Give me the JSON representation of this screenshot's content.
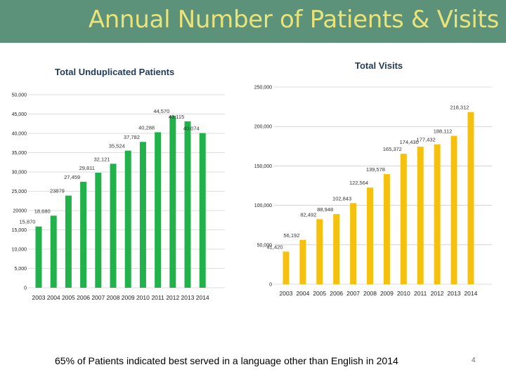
{
  "title": "Annual Number of Patients & Visits",
  "footnote": "65% of Patients indicated best served in a language other than English in 2014",
  "page_number": "4",
  "colors": {
    "header": "#5b9279",
    "title": "#e9e37c",
    "patients_bar": "#21b24b",
    "visits_bar": "#f5c10e"
  },
  "chart_data": [
    {
      "type": "bar",
      "title": "Total Unduplicated Patients",
      "categories": [
        "2003",
        "2004",
        "2005",
        "2006",
        "2007",
        "2008",
        "2009",
        "2010",
        "2011",
        "2012",
        "2013",
        "2014"
      ],
      "values": [
        15870,
        18680,
        23879,
        27459,
        29811,
        32121,
        35524,
        37782,
        40288,
        44570,
        43115,
        40074
      ],
      "value_labels": [
        "15,870",
        "18,680",
        "23879",
        "27,459",
        "29,811",
        "32,121",
        "35,524",
        "37,782",
        "40,288",
        "44,570",
        "43,115",
        "40,074"
      ],
      "ylim": [
        0,
        50000
      ],
      "yticks": [
        0,
        5000,
        10000,
        15000,
        20000,
        25000,
        30000,
        35000,
        40000,
        45000,
        50000
      ],
      "ytick_labels": [
        "0",
        "5,000",
        "10,000",
        "15,000",
        "20000",
        "25,000",
        "30,000",
        "35,000",
        "40,000",
        "45,000",
        "50,000"
      ],
      "xlabel": "",
      "ylabel": ""
    },
    {
      "type": "bar",
      "title": "Total Visits",
      "categories": [
        "2003",
        "2004",
        "2005",
        "2006",
        "2007",
        "2008",
        "2009",
        "2010",
        "2011",
        "2012",
        "2013",
        "2014"
      ],
      "values": [
        41420,
        56192,
        82492,
        88948,
        102843,
        122564,
        139578,
        165372,
        174430,
        177432,
        188112,
        218312
      ],
      "value_labels": [
        "41,420",
        "56,192",
        "82,492",
        "88,948",
        "102,843",
        "122,564",
        "139,578",
        "165,372",
        "174,430",
        "177,432",
        "188,112",
        "218,312"
      ],
      "ylim": [
        0,
        250000
      ],
      "yticks": [
        0,
        50000,
        100000,
        150000,
        200000,
        250000
      ],
      "ytick_labels": [
        "0",
        "50,000",
        "100,000",
        "150,000",
        "200,000",
        "250,000"
      ],
      "xlabel": "",
      "ylabel": ""
    }
  ]
}
